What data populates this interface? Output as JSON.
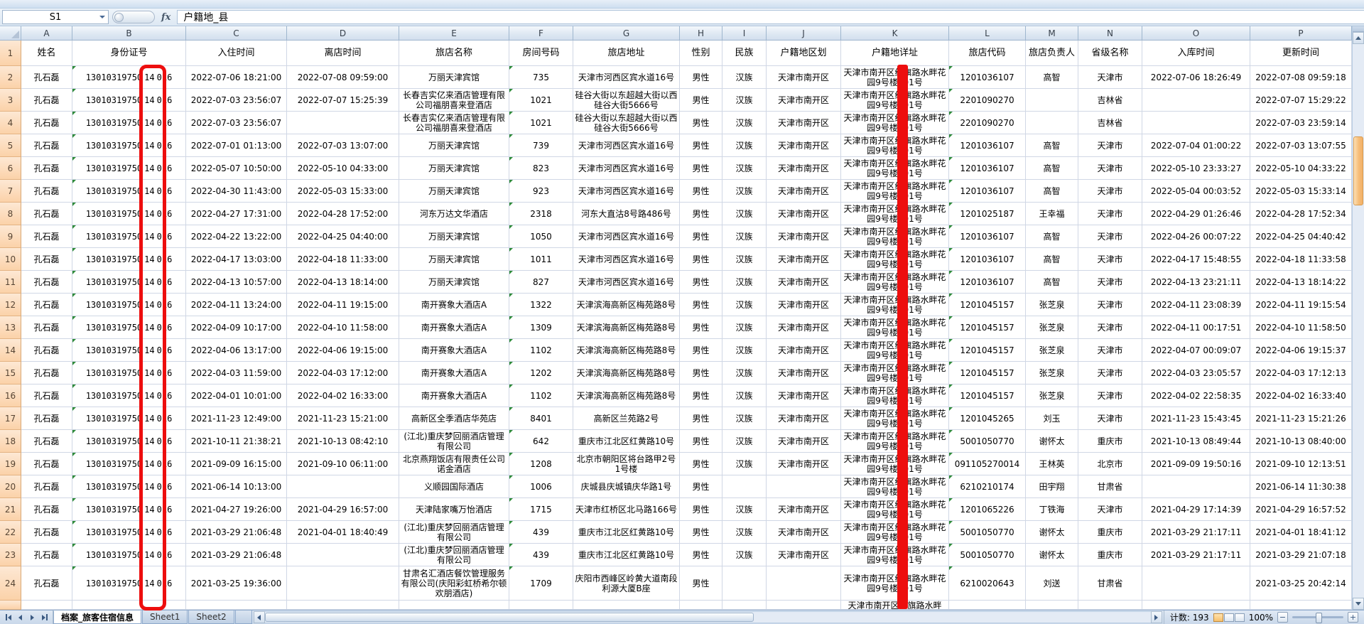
{
  "name_box": "S1",
  "fx_label": "fx",
  "formula_value": "户籍地_县",
  "column_letters": [
    "A",
    "B",
    "C",
    "D",
    "E",
    "F",
    "G",
    "H",
    "I",
    "J",
    "K",
    "L",
    "M",
    "N",
    "O",
    "P"
  ],
  "header_row_number": "1",
  "headers": [
    "姓名",
    "身份证号",
    "入住时间",
    "离店时间",
    "旅店名称",
    "房间号码",
    "旅店地址",
    "性别",
    "民族",
    "户籍地区划",
    "户籍地详址",
    "旅店代码",
    "旅店负责人",
    "省级名称",
    "入库时间",
    "更新时间"
  ],
  "rows": [
    [
      "孔石磊",
      "1301031975014016",
      "2022-07-06 18:21:00",
      "2022-07-08 09:59:00",
      "万丽天津宾馆",
      "735",
      "天津市河西区宾水道16号",
      "男性",
      "汉族",
      "天津市南开区",
      "天津市南开区红旗路水畔花园9号楼101号",
      "1201036107",
      "高智",
      "天津市",
      "2022-07-06 18:26:49",
      "2022-07-08 09:59:18"
    ],
    [
      "孔石磊",
      "1301031975014016",
      "2022-07-03 23:56:07",
      "2022-07-07 15:25:39",
      "长春吉实亿来酒店管理有限公司福朋喜来登酒店",
      "1021",
      "硅谷大街以东超越大街以西硅谷大街5666号",
      "男性",
      "汉族",
      "天津市南开区",
      "天津市南开区红旗路水畔花园9号楼101号",
      "2201090270",
      "",
      "吉林省",
      "",
      "2022-07-07 15:29:22"
    ],
    [
      "孔石磊",
      "1301031975014016",
      "2022-07-03 23:56:07",
      "",
      "长春吉实亿来酒店管理有限公司福朋喜来登酒店",
      "1021",
      "硅谷大街以东超越大街以西硅谷大街5666号",
      "男性",
      "汉族",
      "天津市南开区",
      "天津市南开区红旗路水畔花园9号楼101号",
      "2201090270",
      "",
      "吉林省",
      "",
      "2022-07-03 23:59:14"
    ],
    [
      "孔石磊",
      "1301031975014016",
      "2022-07-01 01:13:00",
      "2022-07-03 13:07:00",
      "万丽天津宾馆",
      "739",
      "天津市河西区宾水道16号",
      "男性",
      "汉族",
      "天津市南开区",
      "天津市南开区红旗路水畔花园9号楼101号",
      "1201036107",
      "高智",
      "天津市",
      "2022-07-04 01:00:22",
      "2022-07-03 13:07:55"
    ],
    [
      "孔石磊",
      "1301031975014016",
      "2022-05-07 10:50:00",
      "2022-05-10 04:33:00",
      "万丽天津宾馆",
      "823",
      "天津市河西区宾水道16号",
      "男性",
      "汉族",
      "天津市南开区",
      "天津市南开区红旗路水畔花园9号楼101号",
      "1201036107",
      "高智",
      "天津市",
      "2022-05-10 23:33:27",
      "2022-05-10 04:33:22"
    ],
    [
      "孔石磊",
      "1301031975014016",
      "2022-04-30 11:43:00",
      "2022-05-03 15:33:00",
      "万丽天津宾馆",
      "923",
      "天津市河西区宾水道16号",
      "男性",
      "汉族",
      "天津市南开区",
      "天津市南开区红旗路水畔花园9号楼101号",
      "1201036107",
      "高智",
      "天津市",
      "2022-05-04 00:03:52",
      "2022-05-03 15:33:14"
    ],
    [
      "孔石磊",
      "1301031975014016",
      "2022-04-27 17:31:00",
      "2022-04-28 17:52:00",
      "河东万达文华酒店",
      "2318",
      "河东大直沽8号路486号",
      "男性",
      "汉族",
      "天津市南开区",
      "天津市南开区红旗路水畔花园9号楼101号",
      "1201025187",
      "王幸福",
      "天津市",
      "2022-04-29 01:26:46",
      "2022-04-28 17:52:34"
    ],
    [
      "孔石磊",
      "1301031975014016",
      "2022-04-22 13:22:00",
      "2022-04-25 04:40:00",
      "万丽天津宾馆",
      "1050",
      "天津市河西区宾水道16号",
      "男性",
      "汉族",
      "天津市南开区",
      "天津市南开区红旗路水畔花园9号楼101号",
      "1201036107",
      "高智",
      "天津市",
      "2022-04-26 00:07:22",
      "2022-04-25 04:40:42"
    ],
    [
      "孔石磊",
      "1301031975014016",
      "2022-04-17 13:03:00",
      "2022-04-18 11:33:00",
      "万丽天津宾馆",
      "1011",
      "天津市河西区宾水道16号",
      "男性",
      "汉族",
      "天津市南开区",
      "天津市南开区红旗路水畔花园9号楼101号",
      "1201036107",
      "高智",
      "天津市",
      "2022-04-17 15:48:55",
      "2022-04-18 11:33:58"
    ],
    [
      "孔石磊",
      "1301031975014016",
      "2022-04-13 10:57:00",
      "2022-04-13 18:14:00",
      "万丽天津宾馆",
      "827",
      "天津市河西区宾水道16号",
      "男性",
      "汉族",
      "天津市南开区",
      "天津市南开区红旗路水畔花园9号楼101号",
      "1201036107",
      "高智",
      "天津市",
      "2022-04-13 23:21:11",
      "2022-04-13 18:14:22"
    ],
    [
      "孔石磊",
      "1301031975014016",
      "2022-04-11 13:24:00",
      "2022-04-11 19:15:00",
      "南开赛象大酒店A",
      "1322",
      "天津滨海高新区梅苑路8号",
      "男性",
      "汉族",
      "天津市南开区",
      "天津市南开区红旗路水畔花园9号楼101号",
      "1201045157",
      "张芝泉",
      "天津市",
      "2022-04-11 23:08:39",
      "2022-04-11 19:15:54"
    ],
    [
      "孔石磊",
      "1301031975014016",
      "2022-04-09 10:17:00",
      "2022-04-10 11:58:00",
      "南开赛象大酒店A",
      "1309",
      "天津滨海高新区梅苑路8号",
      "男性",
      "汉族",
      "天津市南开区",
      "天津市南开区红旗路水畔花园9号楼101号",
      "1201045157",
      "张芝泉",
      "天津市",
      "2022-04-11 00:17:51",
      "2022-04-10 11:58:50"
    ],
    [
      "孔石磊",
      "1301031975014016",
      "2022-04-06 13:17:00",
      "2022-04-06 19:15:00",
      "南开赛象大酒店A",
      "1102",
      "天津滨海高新区梅苑路8号",
      "男性",
      "汉族",
      "天津市南开区",
      "天津市南开区红旗路水畔花园9号楼101号",
      "1201045157",
      "张芝泉",
      "天津市",
      "2022-04-07 00:09:07",
      "2022-04-06 19:15:37"
    ],
    [
      "孔石磊",
      "1301031975014016",
      "2022-04-03 11:59:00",
      "2022-04-03 17:12:00",
      "南开赛象大酒店A",
      "1202",
      "天津滨海高新区梅苑路8号",
      "男性",
      "汉族",
      "天津市南开区",
      "天津市南开区红旗路水畔花园9号楼101号",
      "1201045157",
      "张芝泉",
      "天津市",
      "2022-04-03 23:05:57",
      "2022-04-03 17:12:13"
    ],
    [
      "孔石磊",
      "1301031975014016",
      "2022-04-01 10:01:00",
      "2022-04-02 16:33:00",
      "南开赛象大酒店A",
      "1102",
      "天津滨海高新区梅苑路8号",
      "男性",
      "汉族",
      "天津市南开区",
      "天津市南开区红旗路水畔花园9号楼101号",
      "1201045157",
      "张芝泉",
      "天津市",
      "2022-04-02 22:58:35",
      "2022-04-02 16:33:40"
    ],
    [
      "孔石磊",
      "1301031975014016",
      "2021-11-23 12:49:00",
      "2021-11-23 15:21:00",
      "高新区全季酒店华苑店",
      "8401",
      "高新区兰苑路2号",
      "男性",
      "汉族",
      "天津市南开区",
      "天津市南开区红旗路水畔花园9号楼101号",
      "1201045265",
      "刘玉",
      "天津市",
      "2021-11-23 15:43:45",
      "2021-11-23 15:21:26"
    ],
    [
      "孔石磊",
      "1301031975014016",
      "2021-10-11 21:38:21",
      "2021-10-13 08:42:10",
      "(江北)重庆梦回丽酒店管理有限公司",
      "642",
      "重庆市江北区红黄路10号",
      "男性",
      "汉族",
      "天津市南开区",
      "天津市南开区红旗路水畔花园9号楼101号",
      "5001050770",
      "谢怀太",
      "重庆市",
      "2021-10-13 08:49:44",
      "2021-10-13 08:40:00"
    ],
    [
      "孔石磊",
      "1301031975014016",
      "2021-09-09 16:15:00",
      "2021-09-10 06:11:00",
      "北京燕翔饭店有限责任公司诺金酒店",
      "1208",
      "北京市朝阳区将台路甲2号1号楼",
      "男性",
      "汉族",
      "天津市南开区",
      "天津市南开区红旗路水畔花园9号楼101号",
      "091105270014",
      "王林英",
      "北京市",
      "2021-09-09 19:50:16",
      "2021-09-10 12:13:51"
    ],
    [
      "孔石磊",
      "1301031975014016",
      "2021-06-14 10:13:00",
      "",
      "义顺园国际酒店",
      "1006",
      "庆城县庆城镇庆华路1号",
      "男性",
      "",
      "",
      "天津市南开区红旗路水畔花园9号楼101号",
      "6210210174",
      "田宇翔",
      "甘肃省",
      "",
      "2021-06-14 11:30:38"
    ],
    [
      "孔石磊",
      "1301031975014016",
      "2021-04-27 19:26:00",
      "2021-04-29 16:57:00",
      "天津陆家嘴万怡酒店",
      "1715",
      "天津市红桥区北马路166号",
      "男性",
      "汉族",
      "天津市南开区",
      "天津市南开区红旗路水畔花园9号楼101号",
      "1201065226",
      "丁铁海",
      "天津市",
      "2021-04-29 17:14:39",
      "2021-04-29 16:57:52"
    ],
    [
      "孔石磊",
      "1301031975014016",
      "2021-03-29 21:06:48",
      "2021-04-01 18:40:49",
      "(江北)重庆梦回丽酒店管理有限公司",
      "439",
      "重庆市江北区红黄路10号",
      "男性",
      "汉族",
      "天津市南开区",
      "天津市南开区红旗路水畔花园9号楼101号",
      "5001050770",
      "谢怀太",
      "重庆市",
      "2021-03-29 21:17:11",
      "2021-04-01 18:41:12"
    ],
    [
      "孔石磊",
      "1301031975014016",
      "2021-03-29 21:06:48",
      "",
      "(江北)重庆梦回丽酒店管理有限公司",
      "439",
      "重庆市江北区红黄路10号",
      "男性",
      "汉族",
      "天津市南开区",
      "天津市南开区红旗路水畔花园9号楼101号",
      "5001050770",
      "谢怀太",
      "重庆市",
      "2021-03-29 21:17:11",
      "2021-03-29 21:07:18"
    ],
    [
      "孔石磊",
      "1301031975014016",
      "2021-03-25 19:36:00",
      "",
      "甘肃名汇酒店餐饮管理服务有限公司(庆阳彩虹桥希尔顿欢朋酒店)",
      "1709",
      "庆阳市西峰区岭黄大道南段利源大厦B座",
      "男性",
      "",
      "",
      "天津市南开区红旗路水畔花园9号楼101号",
      "6210020643",
      "刘送",
      "甘肃省",
      "",
      "2021-03-25 20:42:14"
    ]
  ],
  "partial_row_k": "天津市南开区红旗路水畔",
  "sheet_tabs": [
    "档案_旅客住宿信息",
    "Sheet1",
    "Sheet2"
  ],
  "active_tab_index": 0,
  "status": {
    "count": "计数: 193",
    "zoom": "100%",
    "zoom_out": "−",
    "zoom_in": "+"
  },
  "colors": {
    "annotation_red": "#ed0e0e",
    "row_header_bg": "#fbd2a9",
    "grid_line": "#d0d7e5"
  }
}
